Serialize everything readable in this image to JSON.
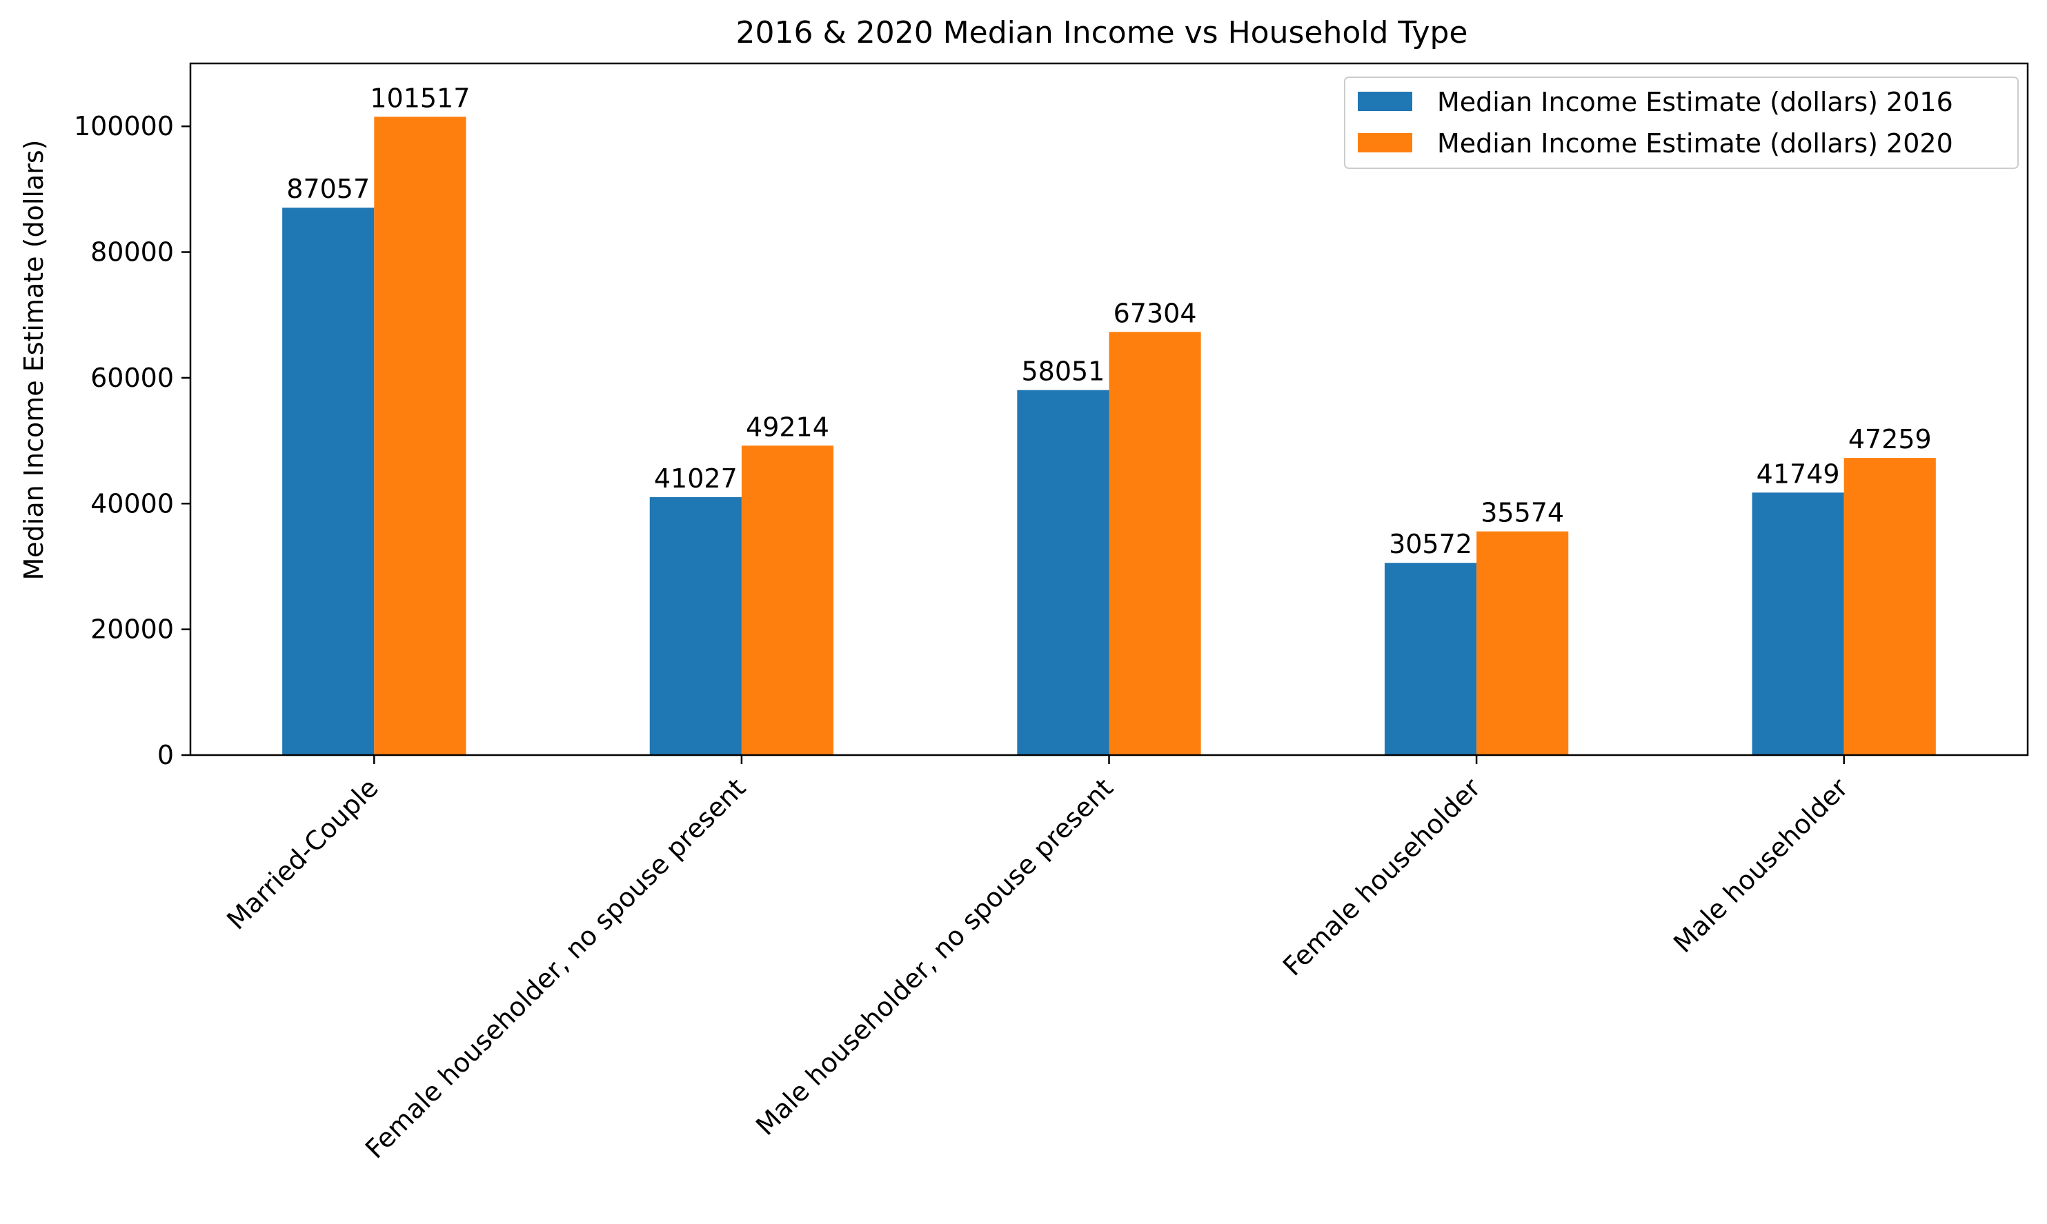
{
  "chart_data": {
    "type": "bar",
    "title": "2016 & 2020 Median Income vs Household Type",
    "xlabel": "",
    "ylabel": "Median Income Estimate (dollars)",
    "categories": [
      "Married-Couple",
      "Female householder, no spouse present",
      "Male householder, no spouse present",
      "Female householder",
      "Male householder"
    ],
    "series": [
      {
        "name": "Median Income Estimate (dollars) 2016",
        "color": "#1f77b4",
        "values": [
          87057,
          41027,
          58051,
          30572,
          41749
        ]
      },
      {
        "name": "Median Income Estimate (dollars) 2020",
        "color": "#ff7f0e",
        "values": [
          101517,
          49214,
          67304,
          35574,
          47259
        ]
      }
    ],
    "ylim": [
      0,
      110000
    ],
    "yticks": [
      0,
      20000,
      40000,
      60000,
      80000,
      100000
    ],
    "ytick_labels": [
      "0",
      "20000",
      "40000",
      "60000",
      "80000",
      "100000"
    ],
    "grid": false,
    "legend_position": "top-right",
    "data_labels": true
  }
}
